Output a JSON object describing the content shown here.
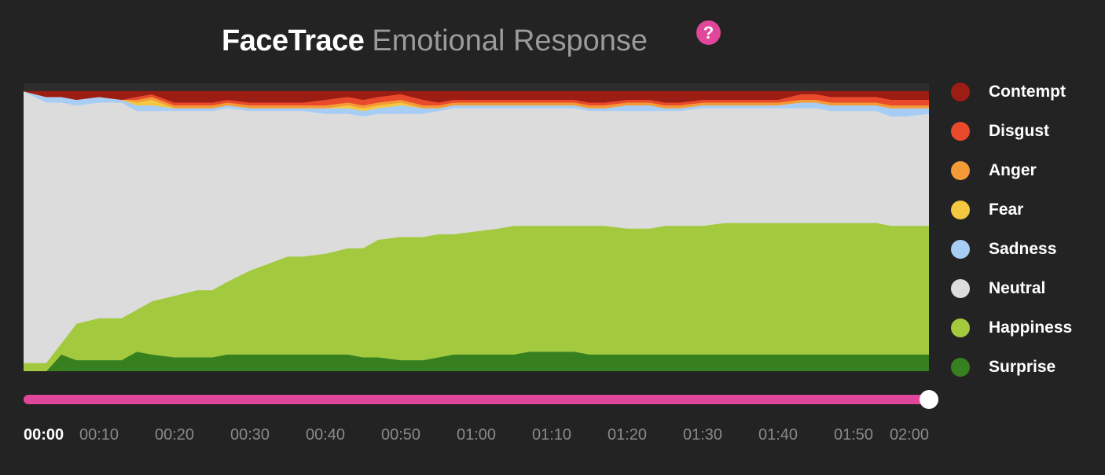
{
  "header": {
    "brand": "FaceTrace",
    "subtitle": "Emotional Response",
    "help_label": "?"
  },
  "playback": {
    "progress": 1.0,
    "current_time": "00:00"
  },
  "colors": {
    "background": "#232323",
    "plot_background": "#dcdcdc",
    "accent": "#e0479a"
  },
  "chart_data": {
    "type": "area",
    "stacked": true,
    "normalized": true,
    "x": [
      0,
      3,
      5,
      7,
      10,
      13,
      15,
      17,
      20,
      23,
      25,
      27,
      30,
      33,
      35,
      37,
      40,
      43,
      45,
      47,
      50,
      53,
      55,
      57,
      60,
      63,
      65,
      67,
      70,
      73,
      75,
      77,
      80,
      83,
      85,
      87,
      90,
      93,
      95,
      97,
      100,
      103,
      105,
      107,
      110,
      113,
      115,
      117,
      120
    ],
    "x_unit": "seconds",
    "xlim": [
      0,
      120
    ],
    "ylim": [
      0,
      1
    ],
    "x_tick_labels": [
      "00:00",
      "00:10",
      "00:20",
      "00:30",
      "00:40",
      "00:50",
      "01:00",
      "01:10",
      "01:20",
      "01:30",
      "01:40",
      "01:50",
      "02:00"
    ],
    "series": [
      {
        "name": "Surprise",
        "color": "#37801f",
        "values": [
          0,
          0,
          0.06,
          0.04,
          0.04,
          0.04,
          0.07,
          0.06,
          0.05,
          0.05,
          0.05,
          0.06,
          0.06,
          0.06,
          0.06,
          0.06,
          0.06,
          0.06,
          0.05,
          0.05,
          0.04,
          0.04,
          0.05,
          0.06,
          0.06,
          0.06,
          0.06,
          0.07,
          0.07,
          0.07,
          0.06,
          0.06,
          0.06,
          0.06,
          0.06,
          0.06,
          0.06,
          0.06,
          0.06,
          0.06,
          0.06,
          0.06,
          0.06,
          0.06,
          0.06,
          0.06,
          0.06,
          0.06,
          0.06
        ]
      },
      {
        "name": "Happiness",
        "color": "#a3c93f",
        "values": [
          0.03,
          0.03,
          0.04,
          0.13,
          0.15,
          0.15,
          0.15,
          0.19,
          0.22,
          0.24,
          0.24,
          0.26,
          0.3,
          0.33,
          0.35,
          0.35,
          0.36,
          0.38,
          0.39,
          0.42,
          0.44,
          0.44,
          0.44,
          0.43,
          0.44,
          0.45,
          0.46,
          0.45,
          0.45,
          0.45,
          0.46,
          0.46,
          0.45,
          0.45,
          0.46,
          0.46,
          0.46,
          0.47,
          0.47,
          0.47,
          0.47,
          0.47,
          0.47,
          0.47,
          0.47,
          0.47,
          0.46,
          0.46,
          0.46
        ]
      },
      {
        "name": "Neutral",
        "color": "#dcdcdc",
        "values": [
          0.97,
          0.93,
          0.86,
          0.78,
          0.77,
          0.77,
          0.71,
          0.68,
          0.66,
          0.64,
          0.64,
          0.62,
          0.57,
          0.54,
          0.52,
          0.52,
          0.5,
          0.48,
          0.47,
          0.45,
          0.44,
          0.44,
          0.44,
          0.45,
          0.44,
          0.43,
          0.42,
          0.42,
          0.42,
          0.42,
          0.41,
          0.41,
          0.42,
          0.42,
          0.41,
          0.41,
          0.42,
          0.41,
          0.41,
          0.41,
          0.41,
          0.41,
          0.41,
          0.4,
          0.4,
          0.4,
          0.39,
          0.39,
          0.4
        ]
      },
      {
        "name": "Sadness",
        "color": "#a8cdf5",
        "values": [
          0,
          0.02,
          0.02,
          0.02,
          0.02,
          0.01,
          0.02,
          0.02,
          0.01,
          0.01,
          0.01,
          0.01,
          0.01,
          0.01,
          0.01,
          0.01,
          0.02,
          0.02,
          0.02,
          0.02,
          0.03,
          0.02,
          0.01,
          0.01,
          0.01,
          0.01,
          0.01,
          0.01,
          0.01,
          0.01,
          0.01,
          0.01,
          0.02,
          0.02,
          0.01,
          0.01,
          0.01,
          0.01,
          0.01,
          0.01,
          0.01,
          0.02,
          0.02,
          0.02,
          0.02,
          0.02,
          0.03,
          0.03,
          0.02
        ]
      },
      {
        "name": "Fear",
        "color": "#f5c842",
        "values": [
          0,
          0,
          0,
          0,
          0,
          0,
          0.01,
          0.02,
          0,
          0,
          0,
          0,
          0,
          0,
          0,
          0,
          0,
          0.01,
          0.01,
          0.01,
          0.01,
          0,
          0,
          0,
          0,
          0,
          0,
          0,
          0,
          0,
          0,
          0,
          0,
          0,
          0,
          0,
          0,
          0,
          0,
          0,
          0,
          0,
          0,
          0,
          0,
          0,
          0,
          0,
          0
        ]
      },
      {
        "name": "Anger",
        "color": "#f49a38",
        "values": [
          0,
          0,
          0,
          0,
          0,
          0,
          0.01,
          0.01,
          0.01,
          0.01,
          0.01,
          0.01,
          0.01,
          0.01,
          0.01,
          0.01,
          0.01,
          0.01,
          0.01,
          0.01,
          0.01,
          0.01,
          0.01,
          0.01,
          0.01,
          0.01,
          0.01,
          0.01,
          0.01,
          0.01,
          0.01,
          0.01,
          0.01,
          0.01,
          0.01,
          0.01,
          0.01,
          0.01,
          0.01,
          0.01,
          0.01,
          0.01,
          0.01,
          0.01,
          0.01,
          0.01,
          0.01,
          0.01,
          0.01
        ]
      },
      {
        "name": "Disgust",
        "color": "#e84a2b",
        "values": [
          0,
          0,
          0,
          0,
          0,
          0,
          0.01,
          0.01,
          0.01,
          0.01,
          0.01,
          0.01,
          0.01,
          0.01,
          0.01,
          0.01,
          0.02,
          0.02,
          0.02,
          0.02,
          0.02,
          0.02,
          0.01,
          0.01,
          0.01,
          0.01,
          0.01,
          0.01,
          0.01,
          0.01,
          0.01,
          0.01,
          0.01,
          0.01,
          0.01,
          0.01,
          0.01,
          0.01,
          0.01,
          0.01,
          0.01,
          0.02,
          0.02,
          0.02,
          0.02,
          0.02,
          0.02,
          0.02,
          0.02
        ]
      },
      {
        "name": "Contempt",
        "color": "#9b1d14",
        "values": [
          0,
          0.02,
          0.02,
          0.03,
          0.02,
          0.03,
          0.02,
          0.01,
          0.04,
          0.04,
          0.04,
          0.03,
          0.04,
          0.04,
          0.04,
          0.04,
          0.03,
          0.02,
          0.03,
          0.02,
          0.01,
          0.03,
          0.04,
          0.03,
          0.03,
          0.03,
          0.03,
          0.03,
          0.03,
          0.03,
          0.04,
          0.04,
          0.03,
          0.03,
          0.04,
          0.04,
          0.03,
          0.03,
          0.03,
          0.03,
          0.03,
          0.01,
          0.01,
          0.02,
          0.02,
          0.02,
          0.03,
          0.03,
          0.03
        ]
      }
    ],
    "legend": {
      "position": "right",
      "items": [
        {
          "name": "Contempt",
          "color": "#9b1d14"
        },
        {
          "name": "Disgust",
          "color": "#e84a2b"
        },
        {
          "name": "Anger",
          "color": "#f49a38"
        },
        {
          "name": "Fear",
          "color": "#f5c842"
        },
        {
          "name": "Sadness",
          "color": "#a8cdf5"
        },
        {
          "name": "Neutral",
          "color": "#dcdcdc"
        },
        {
          "name": "Happiness",
          "color": "#a3c93f"
        },
        {
          "name": "Surprise",
          "color": "#37801f"
        }
      ]
    },
    "grid": false
  }
}
